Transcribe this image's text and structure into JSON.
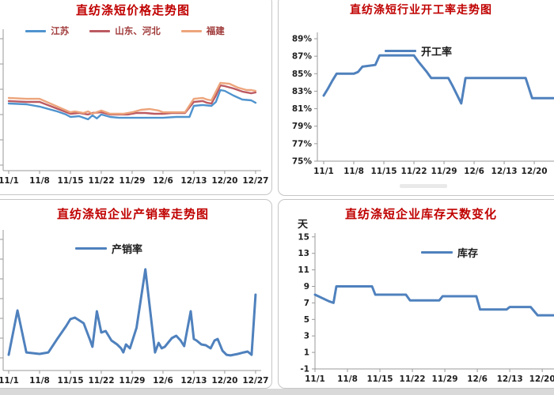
{
  "page": {
    "background": "#ffffff",
    "footer_strip_color": "#d9d9d9",
    "accent_title_color": "#c00000",
    "steel_blue": "#4f81bd"
  },
  "chart_data": [
    {
      "id": "price",
      "type": "line",
      "title": "直纺涤短价格走势图",
      "title_color": "#c00000",
      "x_unit": "day index from 11/1",
      "x_ticks": [
        "11/1",
        "11/8",
        "11/15",
        "11/22",
        "11/29",
        "12/6",
        "12/13",
        "12/20",
        "12/27"
      ],
      "x_tick_days": [
        0,
        7,
        14,
        21,
        28,
        35,
        42,
        49,
        56
      ],
      "y_axis": {
        "labels_visible": false,
        "note": "y-axis tick labels cropped off left edge",
        "ylim": [
          0,
          100
        ],
        "unit": "relative price level"
      },
      "legend": [
        {
          "label": "江苏",
          "color": "#4f93ce"
        },
        {
          "label": "山东、河北",
          "color": "#bc5a62"
        },
        {
          "label": "福建",
          "color": "#eda57c"
        }
      ],
      "series": [
        {
          "name": "江苏",
          "color": "#4f93ce",
          "points": [
            [
              0,
              47.5
            ],
            [
              4,
              46.9
            ],
            [
              7,
              45.3
            ],
            [
              11,
              41.9
            ],
            [
              13,
              39.7
            ],
            [
              14,
              38
            ],
            [
              16,
              38.5
            ],
            [
              18,
              36.3
            ],
            [
              19,
              39.1
            ],
            [
              20,
              36.9
            ],
            [
              21,
              39.7
            ],
            [
              23,
              38
            ],
            [
              25,
              37.4
            ],
            [
              30,
              37.4
            ],
            [
              35,
              37.4
            ],
            [
              38,
              38
            ],
            [
              41,
              38
            ],
            [
              42,
              45.8
            ],
            [
              44,
              46.4
            ],
            [
              46,
              45.8
            ],
            [
              47,
              48.6
            ],
            [
              48,
              57
            ],
            [
              49,
              56.4
            ],
            [
              51,
              53.1
            ],
            [
              53,
              50.3
            ],
            [
              55,
              49.7
            ],
            [
              56,
              48
            ]
          ]
        },
        {
          "name": "山东、河北",
          "color": "#bc5a62",
          "points": [
            [
              0,
              49.2
            ],
            [
              4,
              48.6
            ],
            [
              7,
              48.6
            ],
            [
              14,
              40.2
            ],
            [
              16,
              40.8
            ],
            [
              18,
              39.7
            ],
            [
              19,
              40.8
            ],
            [
              21,
              41.3
            ],
            [
              23,
              39.7
            ],
            [
              27,
              39.7
            ],
            [
              29,
              40.8
            ],
            [
              31,
              40.8
            ],
            [
              33,
              40.2
            ],
            [
              35,
              40.2
            ],
            [
              37,
              40.8
            ],
            [
              40,
              40.8
            ],
            [
              42,
              48.6
            ],
            [
              44,
              49.2
            ],
            [
              45,
              48
            ],
            [
              46,
              47.5
            ],
            [
              47,
              53.1
            ],
            [
              48,
              60.3
            ],
            [
              49,
              59.8
            ],
            [
              51,
              58.1
            ],
            [
              53,
              55.9
            ],
            [
              55,
              54.7
            ],
            [
              56,
              55.3
            ]
          ]
        },
        {
          "name": "福建",
          "color": "#eda57c",
          "points": [
            [
              0,
              51.4
            ],
            [
              4,
              50.8
            ],
            [
              7,
              50.8
            ],
            [
              14,
              41.3
            ],
            [
              15,
              41.9
            ],
            [
              17,
              40.8
            ],
            [
              18,
              41.9
            ],
            [
              19,
              40.2
            ],
            [
              21,
              42.5
            ],
            [
              23,
              40.2
            ],
            [
              26,
              40.2
            ],
            [
              28,
              41.3
            ],
            [
              30,
              43
            ],
            [
              32,
              43.6
            ],
            [
              34,
              42.5
            ],
            [
              35,
              41.3
            ],
            [
              40,
              41.3
            ],
            [
              42,
              50.8
            ],
            [
              44,
              51.4
            ],
            [
              45,
              50.3
            ],
            [
              46,
              49.7
            ],
            [
              47,
              55.9
            ],
            [
              48,
              62
            ],
            [
              50,
              61.5
            ],
            [
              52,
              58.7
            ],
            [
              54,
              57
            ],
            [
              55,
              57
            ],
            [
              56,
              56.4
            ]
          ]
        }
      ]
    },
    {
      "id": "operating-rate",
      "type": "line",
      "title": "直纺涤短行业开工率走势图",
      "title_color": "#c00000",
      "x_unit": "day index from 11/1",
      "x_ticks": [
        "11/1",
        "11/8",
        "11/15",
        "11/22",
        "11/29",
        "12/6",
        "12/13",
        "12/20"
      ],
      "x_tick_days": [
        0,
        7,
        14,
        21,
        28,
        35,
        42,
        49
      ],
      "y_axis": {
        "labels_visible": true,
        "tick_labels": [
          "89%",
          "87%",
          "85%",
          "83%",
          "81%",
          "79%",
          "77%",
          "75%"
        ],
        "tick_values": [
          89,
          87,
          85,
          83,
          81,
          79,
          77,
          75
        ],
        "ylim": [
          75,
          89
        ],
        "unit": "percent"
      },
      "legend": [
        {
          "label": "开工率",
          "color": "#4f81bd"
        }
      ],
      "series": [
        {
          "name": "开工率",
          "color": "#4f81bd",
          "points": [
            [
              0,
              82.5
            ],
            [
              1,
              83.3
            ],
            [
              2,
              84.2
            ],
            [
              3,
              85
            ],
            [
              7,
              85
            ],
            [
              8,
              85.2
            ],
            [
              9,
              85.8
            ],
            [
              12,
              86
            ],
            [
              13,
              87.1
            ],
            [
              21,
              87.1
            ],
            [
              22,
              86.4
            ],
            [
              24,
              85.2
            ],
            [
              25,
              84.5
            ],
            [
              29,
              84.5
            ],
            [
              30,
              83.6
            ],
            [
              32,
              81.6
            ],
            [
              33,
              84.5
            ],
            [
              47,
              84.5
            ],
            [
              48.5,
              82.2
            ],
            [
              53.5,
              82.2
            ]
          ]
        }
      ]
    },
    {
      "id": "sales-ratio",
      "type": "line",
      "title": "直纺涤短企业产销率走势图",
      "title_color": "#c00000",
      "x_unit": "day index from 11/1",
      "x_ticks": [
        "11/1",
        "11/8",
        "11/15",
        "11/22",
        "11/29",
        "12/6",
        "12/13",
        "12/20",
        "12/27"
      ],
      "x_tick_days": [
        0,
        7,
        14,
        21,
        28,
        35,
        42,
        49,
        56
      ],
      "y_axis": {
        "labels_visible": false,
        "note": "y-axis tick labels cropped off left edge",
        "ylim": [
          0,
          100
        ],
        "unit": "relative ratio level"
      },
      "legend": [
        {
          "label": "产销率",
          "color": "#4f81bd"
        }
      ],
      "series": [
        {
          "name": "产销率",
          "color": "#4f81bd",
          "points": [
            [
              0,
              10.7
            ],
            [
              2,
              42.4
            ],
            [
              4,
              12.4
            ],
            [
              7,
              11.3
            ],
            [
              9,
              12.4
            ],
            [
              11,
              22
            ],
            [
              13,
              31.1
            ],
            [
              14,
              36.2
            ],
            [
              15,
              37.3
            ],
            [
              17,
              33.3
            ],
            [
              18.5,
              20.9
            ],
            [
              19,
              16.4
            ],
            [
              20,
              41.8
            ],
            [
              21,
              26.6
            ],
            [
              22,
              27.7
            ],
            [
              23.3,
              20.9
            ],
            [
              24.6,
              18.1
            ],
            [
              25.5,
              15.3
            ],
            [
              26,
              12.4
            ],
            [
              26.6,
              18.1
            ],
            [
              27.5,
              15.3
            ],
            [
              29,
              30
            ],
            [
              31,
              71.8
            ],
            [
              33.2,
              12.4
            ],
            [
              34,
              19.2
            ],
            [
              34.7,
              15.3
            ],
            [
              35.4,
              16.4
            ],
            [
              37,
              22.6
            ],
            [
              38,
              24.3
            ],
            [
              39,
              20.9
            ],
            [
              39.8,
              16.9
            ],
            [
              41.3,
              41.8
            ],
            [
              42,
              22
            ],
            [
              42.6,
              20.9
            ],
            [
              43.7,
              18.1
            ],
            [
              44.7,
              17.5
            ],
            [
              45.8,
              15.3
            ],
            [
              46.7,
              20.9
            ],
            [
              47.4,
              22
            ],
            [
              48.5,
              13.6
            ],
            [
              49.4,
              10.7
            ],
            [
              50.3,
              10.2
            ],
            [
              52,
              11.3
            ],
            [
              53.3,
              12.4
            ],
            [
              54.2,
              13
            ],
            [
              55.1,
              10.7
            ],
            [
              56,
              53.7
            ]
          ]
        }
      ]
    },
    {
      "id": "inventory-days",
      "type": "line",
      "title": "直纺涤短企业库存天数变化",
      "title_color": "#c00000",
      "x_unit": "day index from 11/1",
      "x_ticks": [
        "11/1",
        "11/8",
        "11/15",
        "11/22",
        "11/29",
        "12/6",
        "12/13",
        "12/20"
      ],
      "x_tick_days": [
        0,
        7,
        14,
        21,
        28,
        35,
        42,
        49
      ],
      "y_axis": {
        "labels_visible": true,
        "label": "天",
        "tick_labels": [
          "15",
          "13",
          "11",
          "9",
          "7",
          "5",
          "3",
          "1",
          "-1"
        ],
        "tick_values": [
          15,
          13,
          11,
          9,
          7,
          5,
          3,
          1,
          -1
        ],
        "ylim": [
          -1,
          15
        ],
        "unit": "days"
      },
      "legend": [
        {
          "label": "库存",
          "color": "#4f81bd"
        }
      ],
      "series": [
        {
          "name": "库存",
          "color": "#4f81bd",
          "points": [
            [
              0,
              8
            ],
            [
              3,
              7.2
            ],
            [
              4,
              7
            ],
            [
              4.6,
              9
            ],
            [
              12.3,
              9
            ],
            [
              13,
              8
            ],
            [
              19.6,
              8
            ],
            [
              20.5,
              7.3
            ],
            [
              26.8,
              7.3
            ],
            [
              27.5,
              7.8
            ],
            [
              34.8,
              7.8
            ],
            [
              35.6,
              6.2
            ],
            [
              41.3,
              6.2
            ],
            [
              42,
              6.5
            ],
            [
              46.5,
              6.5
            ],
            [
              48,
              5.5
            ],
            [
              52.4,
              5.5
            ]
          ]
        }
      ]
    }
  ]
}
